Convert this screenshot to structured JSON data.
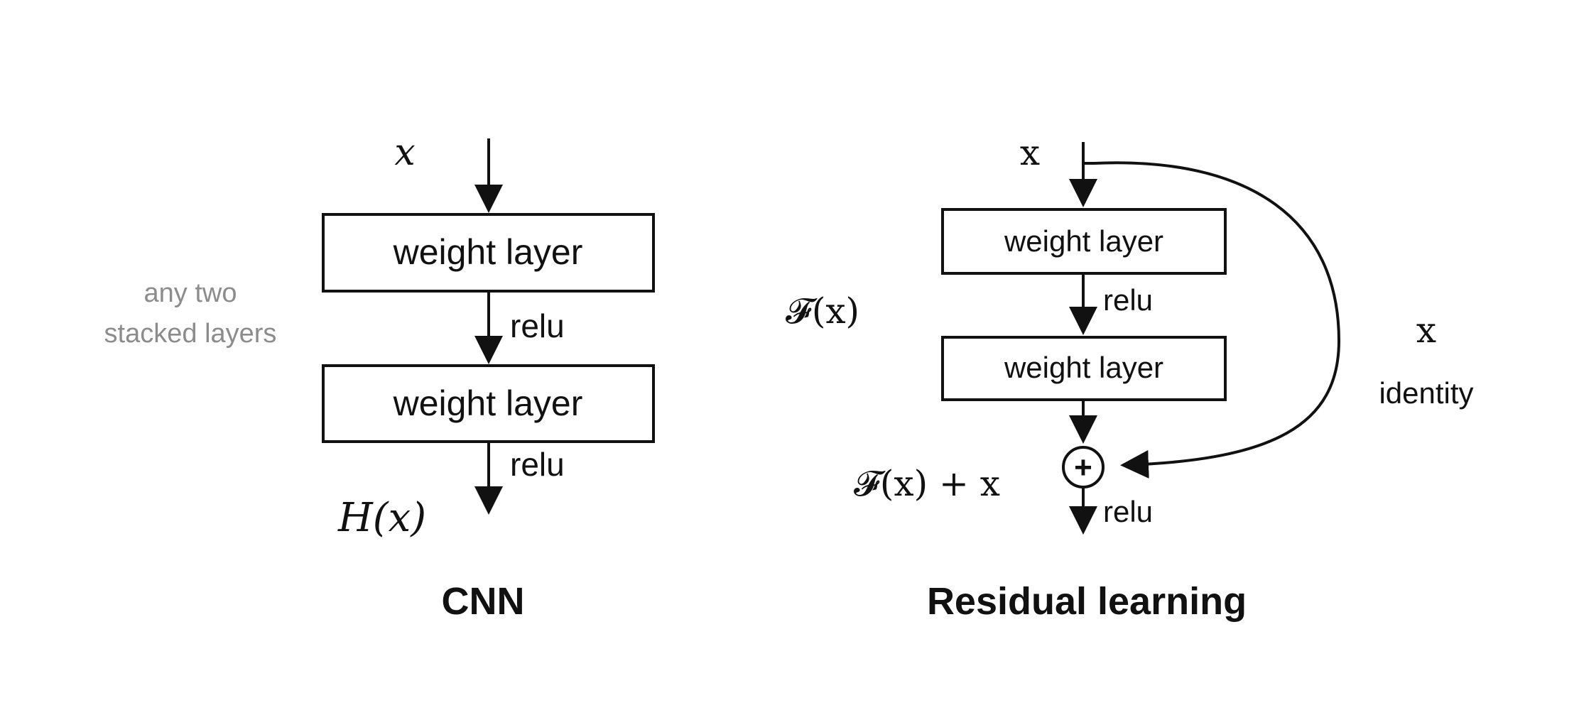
{
  "cnn": {
    "input_label": "x",
    "layer1_label": "weight layer",
    "layer2_label": "weight layer",
    "relu1_label": "relu",
    "relu2_label": "relu",
    "output_label": "H(x)",
    "side_note_line1": "any two",
    "side_note_line2": "stacked layers",
    "caption": "CNN"
  },
  "residual": {
    "input_label": "x",
    "layer1_label": "weight layer",
    "layer2_label": "weight layer",
    "relu1_label": "relu",
    "relu_out_label": "relu",
    "fx_label": "𝓕(x)",
    "sum_label": "𝓕(x) + x",
    "skip_label": "x",
    "identity_label": "identity",
    "sum_symbol": "+",
    "caption": "Residual learning"
  },
  "colors": {
    "stroke": "#111111",
    "muted_text": "#8c8c8c",
    "background": "#ffffff"
  }
}
